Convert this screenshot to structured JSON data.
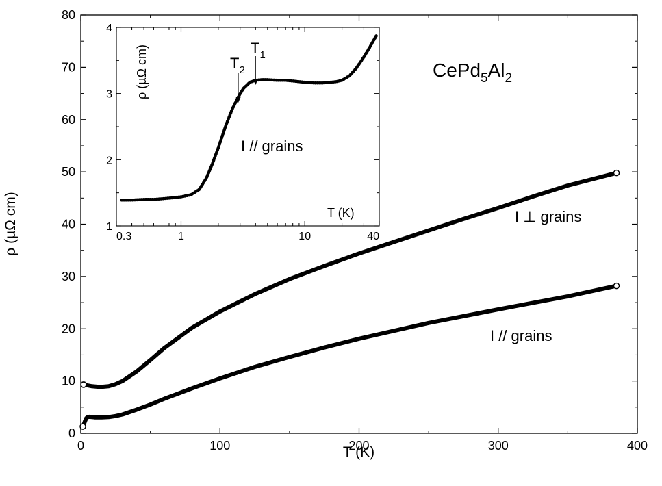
{
  "chart_data": [
    {
      "type": "line",
      "xlabel": "T (K)",
      "ylabel": "ρ (µΩ cm)",
      "xlim": [
        0,
        400
      ],
      "ylim": [
        0,
        80
      ],
      "xticks": [
        "0",
        "100",
        "200",
        "300",
        "400"
      ],
      "yticks": [
        "0",
        "10",
        "20",
        "30",
        "40",
        "50",
        "60",
        "70",
        "80"
      ],
      "grid": false,
      "series": [
        {
          "name": "I ⊥ grains",
          "x": [
            2,
            4,
            8,
            12,
            16,
            20,
            25,
            30,
            40,
            50,
            60,
            80,
            100,
            125,
            150,
            175,
            200,
            225,
            250,
            275,
            300,
            325,
            350,
            385
          ],
          "values": [
            9.3,
            9.2,
            9.0,
            8.9,
            8.9,
            9.0,
            9.4,
            10.0,
            11.8,
            14.0,
            16.3,
            20.2,
            23.3,
            26.6,
            29.5,
            32.0,
            34.4,
            36.6,
            38.8,
            41.0,
            43.1,
            45.3,
            47.4,
            49.8
          ]
        },
        {
          "name": "I // grains",
          "x": [
            1.5,
            2,
            3,
            4,
            5,
            6,
            8,
            10,
            15,
            20,
            25,
            30,
            40,
            50,
            60,
            80,
            100,
            125,
            150,
            175,
            200,
            250,
            300,
            350,
            385
          ],
          "values": [
            1.3,
            1.6,
            2.3,
            2.9,
            3.1,
            3.15,
            3.1,
            3.05,
            3.05,
            3.1,
            3.3,
            3.6,
            4.5,
            5.5,
            6.6,
            8.6,
            10.5,
            12.7,
            14.6,
            16.4,
            18.1,
            21.1,
            23.7,
            26.2,
            28.2
          ]
        }
      ],
      "annotations": {
        "compound_base": "CePd",
        "compound_sub1": "5",
        "compound_mid": "Al",
        "compound_sub2": "2",
        "perp_label": "I ⊥ grains",
        "par_label": "I // grains"
      }
    },
    {
      "type": "line",
      "inset": true,
      "xlabel": "T (K)",
      "ylabel": "ρ (µΩ cm)",
      "xscale": "log",
      "xlim": [
        0.3,
        40
      ],
      "ylim": [
        1,
        4
      ],
      "xticks": [
        "0.3",
        "1",
        "10",
        "40"
      ],
      "yticks": [
        "1",
        "2",
        "3",
        "4"
      ],
      "series": [
        {
          "name": "I // grains",
          "x": [
            0.33,
            0.4,
            0.5,
            0.6,
            0.7,
            0.8,
            1.0,
            1.2,
            1.4,
            1.6,
            1.8,
            2.0,
            2.3,
            2.6,
            2.9,
            3.2,
            3.6,
            4.0,
            4.5,
            5,
            6,
            7,
            8,
            10,
            12,
            14,
            16,
            18,
            20,
            23,
            26,
            30,
            34,
            38
          ],
          "values": [
            1.39,
            1.39,
            1.4,
            1.4,
            1.41,
            1.42,
            1.44,
            1.47,
            1.55,
            1.72,
            1.95,
            2.18,
            2.52,
            2.77,
            2.95,
            3.08,
            3.17,
            3.2,
            3.21,
            3.21,
            3.2,
            3.2,
            3.19,
            3.17,
            3.16,
            3.16,
            3.17,
            3.18,
            3.2,
            3.27,
            3.38,
            3.55,
            3.72,
            3.88
          ]
        }
      ],
      "annotations": {
        "t1_base": "T",
        "t1_sub": "1",
        "t1_x": 4.0,
        "t2_base": "T",
        "t2_sub": "2",
        "t2_x": 2.9,
        "label": "I // grains"
      }
    }
  ]
}
